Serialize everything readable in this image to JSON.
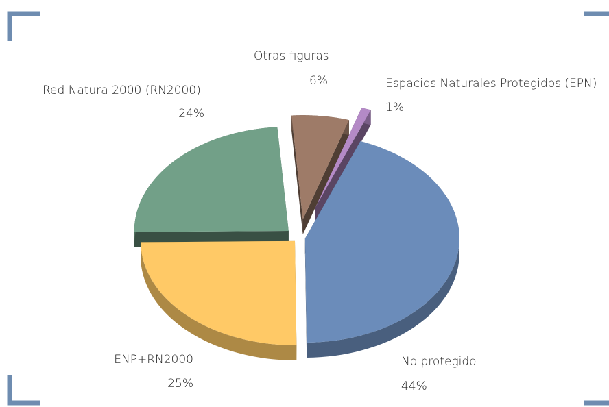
{
  "chart_data": {
    "type": "pie",
    "categories": [
      "No protegido",
      "ENP+RN2000",
      "Red Natura 2000 (RN2000)",
      "Otras figuras",
      "Espacios Naturales Protegidos (EPN)"
    ],
    "values": [
      44,
      25,
      24,
      6,
      1
    ],
    "value_labels": [
      "44%",
      "25%",
      "24%",
      "6%",
      "1%"
    ],
    "colors": [
      "#6b8cba",
      "#ffc966",
      "#72a088",
      "#9e7b68",
      "#b48ac6"
    ]
  }
}
